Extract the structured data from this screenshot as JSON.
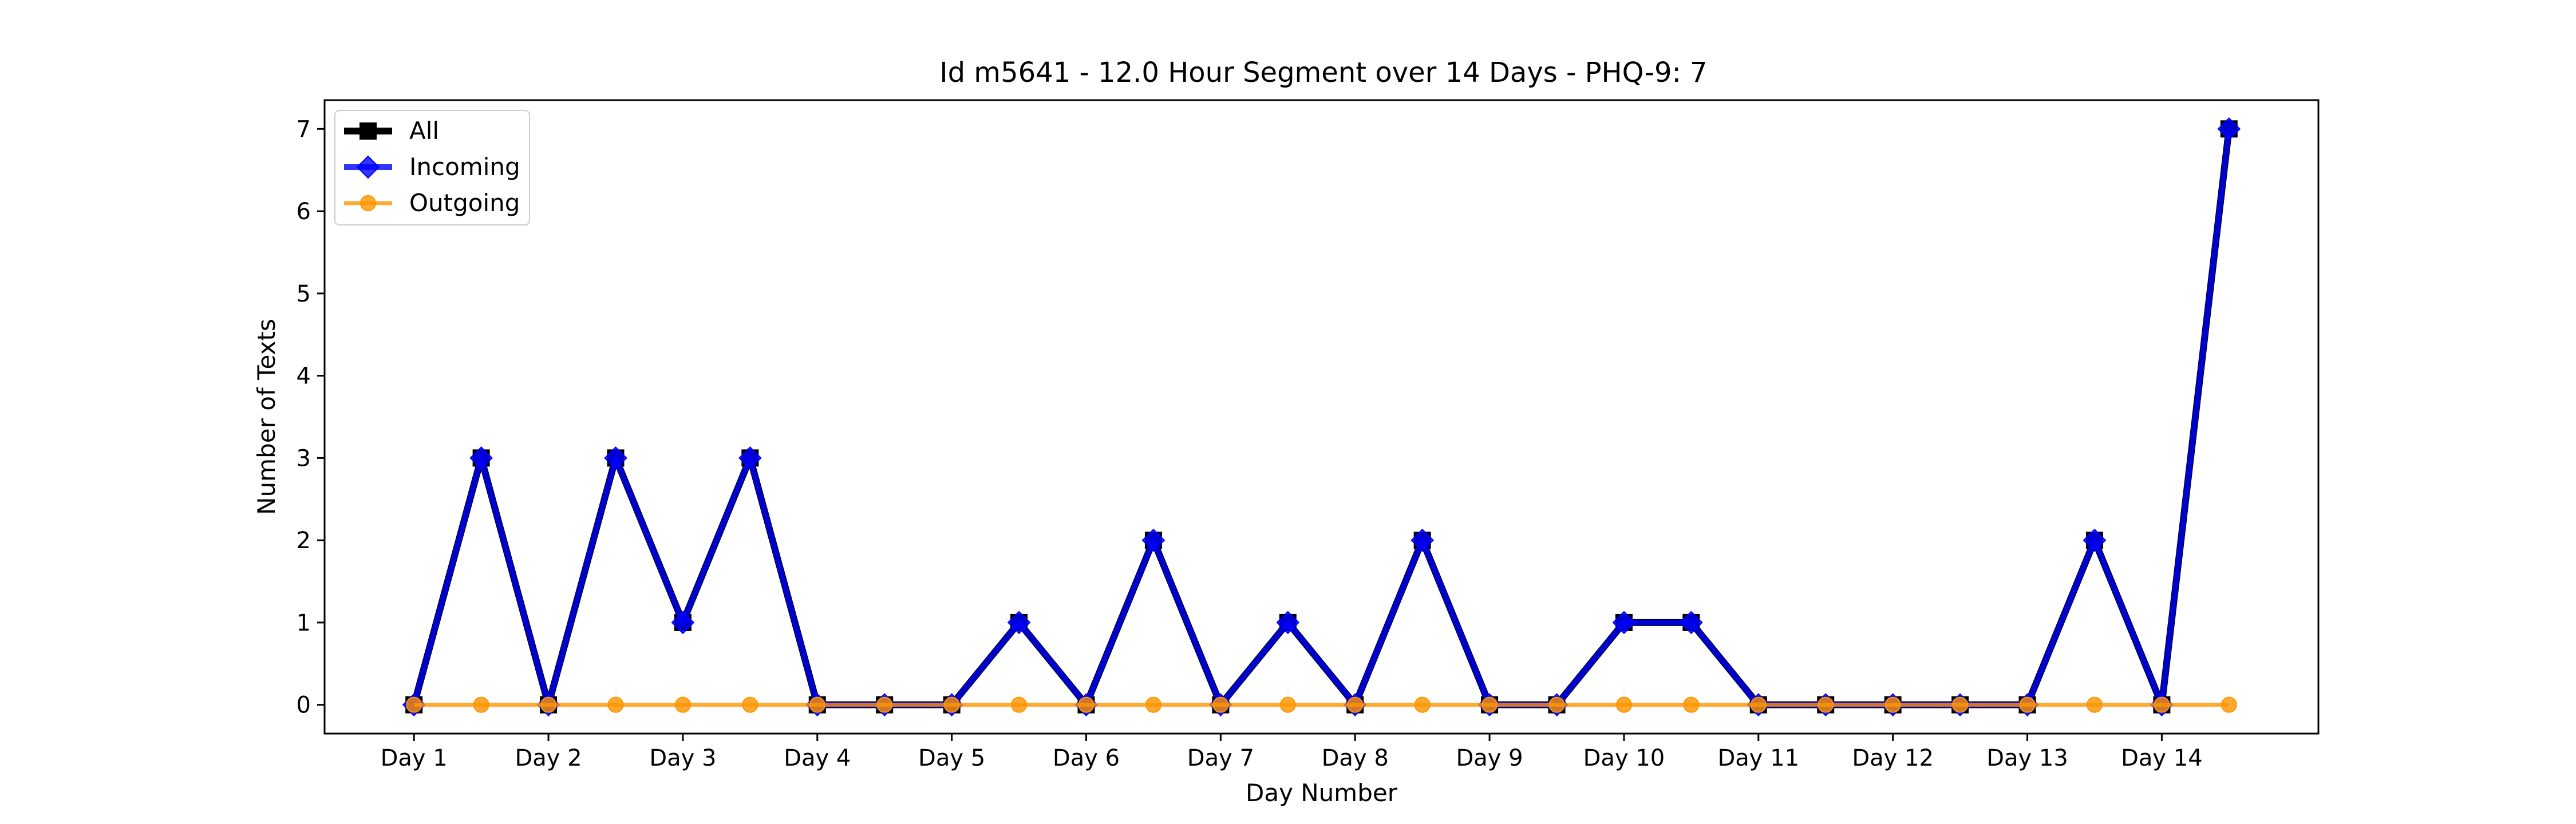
{
  "chart_data": {
    "type": "line",
    "title": "Id m5641 - 12.0 Hour Segment over 14 Days - PHQ-9: 7",
    "xlabel": "Day Number",
    "ylabel": "Number of Texts",
    "x_tick_labels": [
      "Day 1",
      "Day 2",
      "Day 3",
      "Day 4",
      "Day 5",
      "Day 6",
      "Day 7",
      "Day 8",
      "Day 9",
      "Day 10",
      "Day 11",
      "Day 12",
      "Day 13",
      "Day 14"
    ],
    "y_ticks": [
      0,
      1,
      2,
      3,
      4,
      5,
      6,
      7
    ],
    "xlim": [
      0.335,
      15.165
    ],
    "ylim": [
      -0.35,
      7.35
    ],
    "x": [
      1,
      1.5,
      2,
      2.5,
      3,
      3.5,
      4,
      4.5,
      5,
      5.5,
      6,
      6.5,
      7,
      7.5,
      8,
      8.5,
      9,
      9.5,
      10,
      10.5,
      11,
      11.5,
      12,
      12.5,
      13,
      13.5,
      14,
      14.5
    ],
    "grid": false,
    "legend_position": "upper-left",
    "series": [
      {
        "name": "All",
        "color": "#000000",
        "marker": "square",
        "values": [
          0,
          3,
          0,
          3,
          1,
          3,
          0,
          0,
          0,
          1,
          0,
          2,
          0,
          1,
          0,
          2,
          0,
          0,
          1,
          1,
          0,
          0,
          0,
          0,
          0,
          2,
          0,
          7
        ]
      },
      {
        "name": "Incoming",
        "color": "#0000ff",
        "marker": "diamond",
        "values": [
          0,
          3,
          0,
          3,
          1,
          3,
          0,
          0,
          0,
          1,
          0,
          2,
          0,
          1,
          0,
          2,
          0,
          0,
          1,
          1,
          0,
          0,
          0,
          0,
          0,
          2,
          0,
          7
        ]
      },
      {
        "name": "Outgoing",
        "color": "#ff9500",
        "marker": "circle",
        "values": [
          0,
          0,
          0,
          0,
          0,
          0,
          0,
          0,
          0,
          0,
          0,
          0,
          0,
          0,
          0,
          0,
          0,
          0,
          0,
          0,
          0,
          0,
          0,
          0,
          0,
          0,
          0,
          0
        ]
      }
    ]
  }
}
